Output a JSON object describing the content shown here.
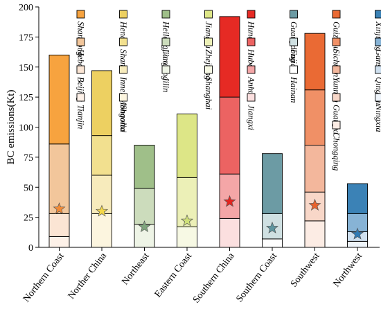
{
  "chart_data": {
    "type": "bar",
    "subtype": "stacked",
    "xlabel": "",
    "ylabel": "BC emissions(Kt)",
    "ylim": [
      0,
      200
    ],
    "yticks": [
      0,
      25,
      50,
      75,
      100,
      125,
      150,
      175,
      200
    ],
    "grid": false,
    "categories": [
      "Northern Coast",
      "Norther China",
      "Northeast",
      "Eastern Coast",
      "Southern China",
      "Southern Coast",
      "Southwest",
      "Northwest"
    ],
    "groups": [
      {
        "category": "Northern Coast",
        "star": 32,
        "segments": [
          {
            "name": "Shandong",
            "value": 74,
            "color": "#f7a33f"
          },
          {
            "name": "Hebei",
            "value": 58,
            "color": "#f2c69b"
          },
          {
            "name": "Beijing",
            "value": 19,
            "color": "#fbe5d4"
          },
          {
            "name": "Tianjin",
            "value": 9,
            "color": "#fdf1e8"
          }
        ]
      },
      {
        "category": "Norther China",
        "star": 30,
        "segments": [
          {
            "name": "Henan",
            "value": 54,
            "color": "#edd061"
          },
          {
            "name": "Shanxi",
            "value": 33,
            "color": "#f2e08f"
          },
          {
            "name": "Inner Mongolia",
            "value": 32,
            "color": "#f7ebbc"
          },
          {
            "name": "Shaanxi",
            "value": 28,
            "color": "#fcf5df"
          }
        ]
      },
      {
        "category": "Northeast",
        "star": 17,
        "segments": [
          {
            "name": "Heilongjiang",
            "value": 36,
            "color": "#9fbf89"
          },
          {
            "name": "Liaoning",
            "value": 30,
            "color": "#ccdcbc"
          },
          {
            "name": "Jilin",
            "value": 19,
            "color": "#eef4e6"
          }
        ]
      },
      {
        "category": "Eastern Coast",
        "star": 22,
        "segments": [
          {
            "name": "Jiangsu",
            "value": 53,
            "color": "#dde687"
          },
          {
            "name": "Zhejiang",
            "value": 41,
            "color": "#ecf0b7"
          },
          {
            "name": "Shanghai",
            "value": 17,
            "color": "#f7f9e4"
          }
        ]
      },
      {
        "category": "Southern China",
        "star": 38,
        "segments": [
          {
            "name": "Hunan",
            "value": 67,
            "color": "#e62a24"
          },
          {
            "name": "Hubei",
            "value": 64,
            "color": "#ec6362"
          },
          {
            "name": "Anhui",
            "value": 37,
            "color": "#f4a6a7"
          },
          {
            "name": "Jiangxi",
            "value": 24,
            "color": "#fbdfdf"
          }
        ]
      },
      {
        "category": "Southern Coast",
        "star": 16,
        "segments": [
          {
            "name": "Guangdong",
            "value": 50,
            "color": "#6c9ba4"
          },
          {
            "name": "Fujian",
            "value": 21,
            "color": "#cfe0e2"
          },
          {
            "name": "Hainan",
            "value": 7,
            "color": "#ffffff"
          }
        ]
      },
      {
        "category": "Southwest",
        "star": 35,
        "segments": [
          {
            "name": "Guizhou",
            "value": 47,
            "color": "#ea6a34"
          },
          {
            "name": "Sichuan",
            "value": 46,
            "color": "#f09066"
          },
          {
            "name": "Yunnan",
            "value": 39,
            "color": "#f3b79c"
          },
          {
            "name": "Guangxi",
            "value": 24,
            "color": "#f8d7c8"
          },
          {
            "name": "Chongqing",
            "value": 22,
            "color": "#fcece4"
          }
        ]
      },
      {
        "category": "Northwest",
        "star": 11,
        "segments": [
          {
            "name": "Xinjiang",
            "value": 25,
            "color": "#3b82b6"
          },
          {
            "name": "Gansu",
            "value": 15,
            "color": "#87b3d5"
          },
          {
            "name": "Qinghai",
            "value": 8,
            "color": "#cfe0ef"
          },
          {
            "name": "Ningxia",
            "value": 5,
            "color": "#eef4fa"
          }
        ]
      }
    ],
    "star_colors": [
      "#f28a36",
      "#f4d84a",
      "#7fa57d",
      "#cfe078",
      "#e6231e",
      "#5e96a0",
      "#e8622d",
      "#2f7ab4"
    ]
  }
}
